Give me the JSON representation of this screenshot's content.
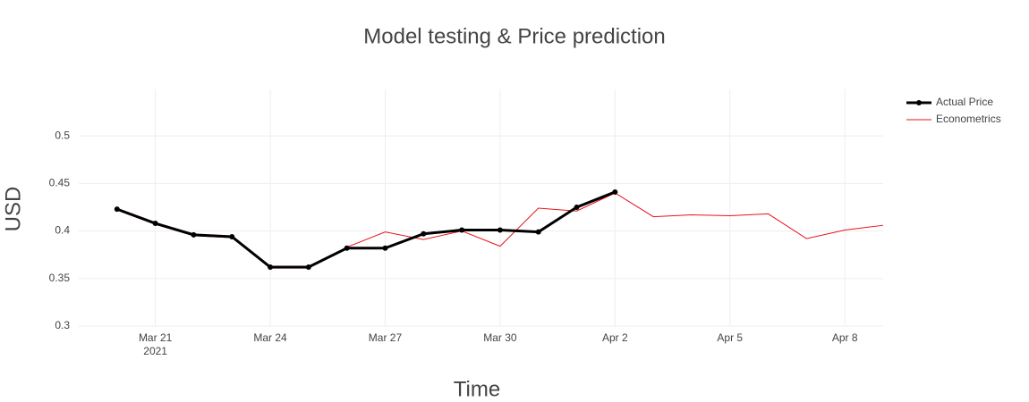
{
  "chart_data": {
    "type": "line",
    "title": "Model testing & Price prediction",
    "x_label": "Time",
    "y_label": "USD",
    "x": [
      "2021-03-20",
      "2021-03-21",
      "2021-03-22",
      "2021-03-23",
      "2021-03-24",
      "2021-03-25",
      "2021-03-26",
      "2021-03-27",
      "2021-03-28",
      "2021-03-29",
      "2021-03-30",
      "2021-03-31",
      "2021-04-01",
      "2021-04-02",
      "2021-04-03",
      "2021-04-04",
      "2021-04-05",
      "2021-04-06",
      "2021-04-07",
      "2021-04-08",
      "2021-04-09"
    ],
    "series": [
      {
        "name": "Actual Price",
        "color": "#000000",
        "markers": true,
        "values": [
          0.423,
          0.408,
          0.396,
          0.394,
          0.362,
          0.362,
          0.382,
          0.382,
          0.397,
          0.401,
          0.401,
          0.399,
          0.425,
          0.441,
          null,
          null,
          null,
          null,
          null,
          null,
          null
        ]
      },
      {
        "name": "Econometrics",
        "color": "#e8131a",
        "markers": false,
        "values": [
          0.422,
          0.407,
          0.395,
          0.393,
          0.361,
          0.361,
          0.383,
          0.399,
          0.391,
          0.4,
          0.384,
          0.424,
          0.421,
          0.44,
          0.415,
          0.417,
          0.416,
          0.418,
          0.392,
          0.401,
          0.406
        ]
      }
    ],
    "xlim": [
      "2021-03-19",
      "2021-04-09"
    ],
    "xticks": [
      {
        "value": "2021-03-21",
        "label": "Mar 21\n2021"
      },
      {
        "value": "2021-03-24",
        "label": "Mar 24"
      },
      {
        "value": "2021-03-27",
        "label": "Mar 27"
      },
      {
        "value": "2021-03-30",
        "label": "Mar 30"
      },
      {
        "value": "2021-04-02",
        "label": "Apr 2"
      },
      {
        "value": "2021-04-05",
        "label": "Apr 5"
      },
      {
        "value": "2021-04-08",
        "label": "Apr 8"
      }
    ],
    "ylim": [
      0.3,
      0.549
    ],
    "yticks": [
      0.3,
      0.35,
      0.4,
      0.45,
      0.5
    ],
    "grid": true,
    "legend": "top-right"
  }
}
